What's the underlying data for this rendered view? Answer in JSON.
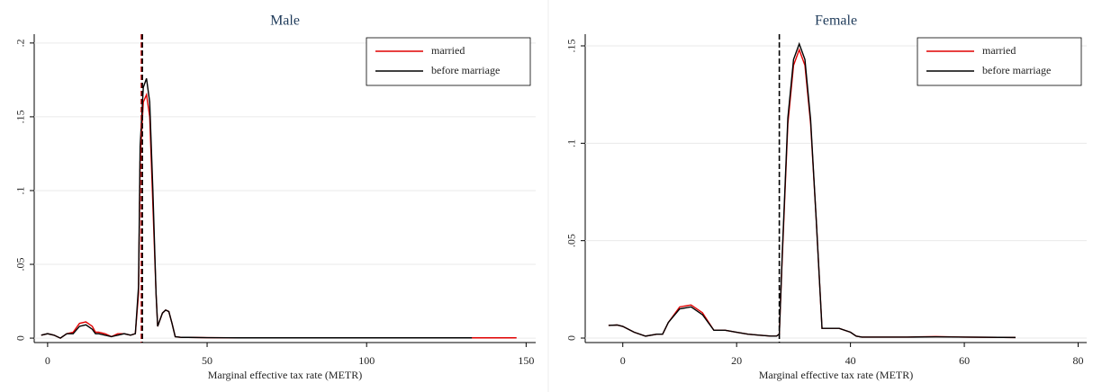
{
  "chart_data": [
    {
      "type": "line",
      "title": "Male",
      "x_label": "Marginal effective tax rate (METR)",
      "x": [
        -2,
        0,
        2,
        4,
        6,
        8,
        10,
        12,
        14,
        15,
        16,
        18,
        20,
        22,
        24,
        26,
        27.5,
        28.5,
        29,
        30,
        31,
        32,
        33,
        34,
        34.5,
        35,
        36,
        37,
        38,
        39,
        40,
        42,
        44,
        50,
        60,
        80,
        100,
        120,
        133,
        140,
        147
      ],
      "series": [
        {
          "name": "married",
          "color": "#e00000",
          "values": [
            0.002,
            0.003,
            0.002,
            0,
            0.003,
            0.004,
            0.01,
            0.011,
            0.008,
            0.004,
            0.004,
            0.003,
            0.001,
            0.003,
            0.003,
            0.002,
            0.003,
            0.03,
            0.12,
            0.16,
            0.165,
            0.15,
            0.09,
            0.03,
            0.008,
            0.011,
            0.017,
            0.019,
            0.018,
            0.01,
            0.001,
            0.0005,
            0.0005,
            0.0003,
            0.0002,
            0.0002,
            0.0002,
            0.0002,
            0.0002,
            0.0002,
            0.0002
          ]
        },
        {
          "name": "before marriage",
          "color": "#000000",
          "values": [
            0.002,
            0.003,
            0.002,
            0,
            0.003,
            0.003,
            0.008,
            0.009,
            0.006,
            0.003,
            0.003,
            0.002,
            0.001,
            0.002,
            0.003,
            0.002,
            0.003,
            0.035,
            0.13,
            0.17,
            0.176,
            0.16,
            0.1,
            0.03,
            0.008,
            0.011,
            0.017,
            0.019,
            0.018,
            0.01,
            0.001,
            0.0005,
            0.0005,
            0.0003,
            0.0002,
            0.0002,
            0.0002,
            0.0002,
            0.0002,
            null,
            null
          ]
        }
      ],
      "vlines": [
        {
          "x": 29.4,
          "color": "#c00000"
        },
        {
          "x": 29.7,
          "color": "#000000"
        }
      ],
      "xlim": [
        -4.2,
        153
      ],
      "ylim": [
        -0.003,
        0.206
      ],
      "xticks": [
        0,
        50,
        100,
        150
      ],
      "yticks": [
        0,
        {
          "value": 0.05,
          "label": ".05"
        },
        {
          "value": 0.1,
          "label": ".1"
        },
        {
          "value": 0.15,
          "label": ".15"
        },
        {
          "value": 0.2,
          "label": ".2"
        }
      ],
      "grid": true,
      "legend": "upper right"
    },
    {
      "type": "line",
      "title": "Female",
      "x_label": "Marginal effective tax rate (METR)",
      "x": [
        -2.5,
        -1,
        0,
        2,
        4,
        6,
        7,
        8,
        10,
        12,
        14,
        16,
        17,
        18,
        20,
        22,
        24,
        26,
        27,
        27.5,
        28,
        29,
        30,
        31,
        32,
        33,
        34,
        35,
        36,
        38,
        40,
        41,
        42,
        50,
        55,
        60,
        69
      ],
      "series": [
        {
          "name": "married",
          "color": "#e00000",
          "values": [
            0.0065,
            0.0067,
            0.006,
            0.003,
            0.001,
            0.002,
            0.002,
            0.008,
            0.016,
            0.017,
            0.013,
            0.004,
            0.004,
            0.004,
            0.003,
            0.002,
            0.0015,
            0.001,
            0.001,
            0.002,
            0.04,
            0.11,
            0.14,
            0.148,
            0.14,
            0.11,
            0.06,
            0.005,
            0.005,
            0.005,
            0.003,
            0.001,
            0.0005,
            0.0005,
            0.0008,
            0.0005,
            0.0003
          ]
        },
        {
          "name": "before marriage",
          "color": "#000000",
          "values": [
            0.0065,
            0.0067,
            0.006,
            0.003,
            0.001,
            0.002,
            0.002,
            0.008,
            0.015,
            0.016,
            0.012,
            0.004,
            0.004,
            0.004,
            0.003,
            0.002,
            0.0015,
            0.001,
            0.001,
            0.002,
            0.042,
            0.113,
            0.143,
            0.151,
            0.143,
            0.112,
            0.06,
            0.005,
            0.005,
            0.005,
            0.003,
            0.001,
            0.0005,
            0.0005,
            0.0006,
            0.0005,
            0.0003
          ]
        }
      ],
      "vlines": [
        {
          "x": 27.5,
          "color": "#000000"
        }
      ],
      "xlim": [
        -6.6,
        81.5
      ],
      "ylim": [
        -0.0023,
        0.156
      ],
      "xticks": [
        0,
        20,
        40,
        60,
        80
      ],
      "yticks": [
        0,
        {
          "value": 0.05,
          "label": ".05"
        },
        {
          "value": 0.1,
          "label": ".1"
        },
        {
          "value": 0.15,
          "label": ".15"
        }
      ],
      "grid": true,
      "legend": "upper right"
    }
  ]
}
